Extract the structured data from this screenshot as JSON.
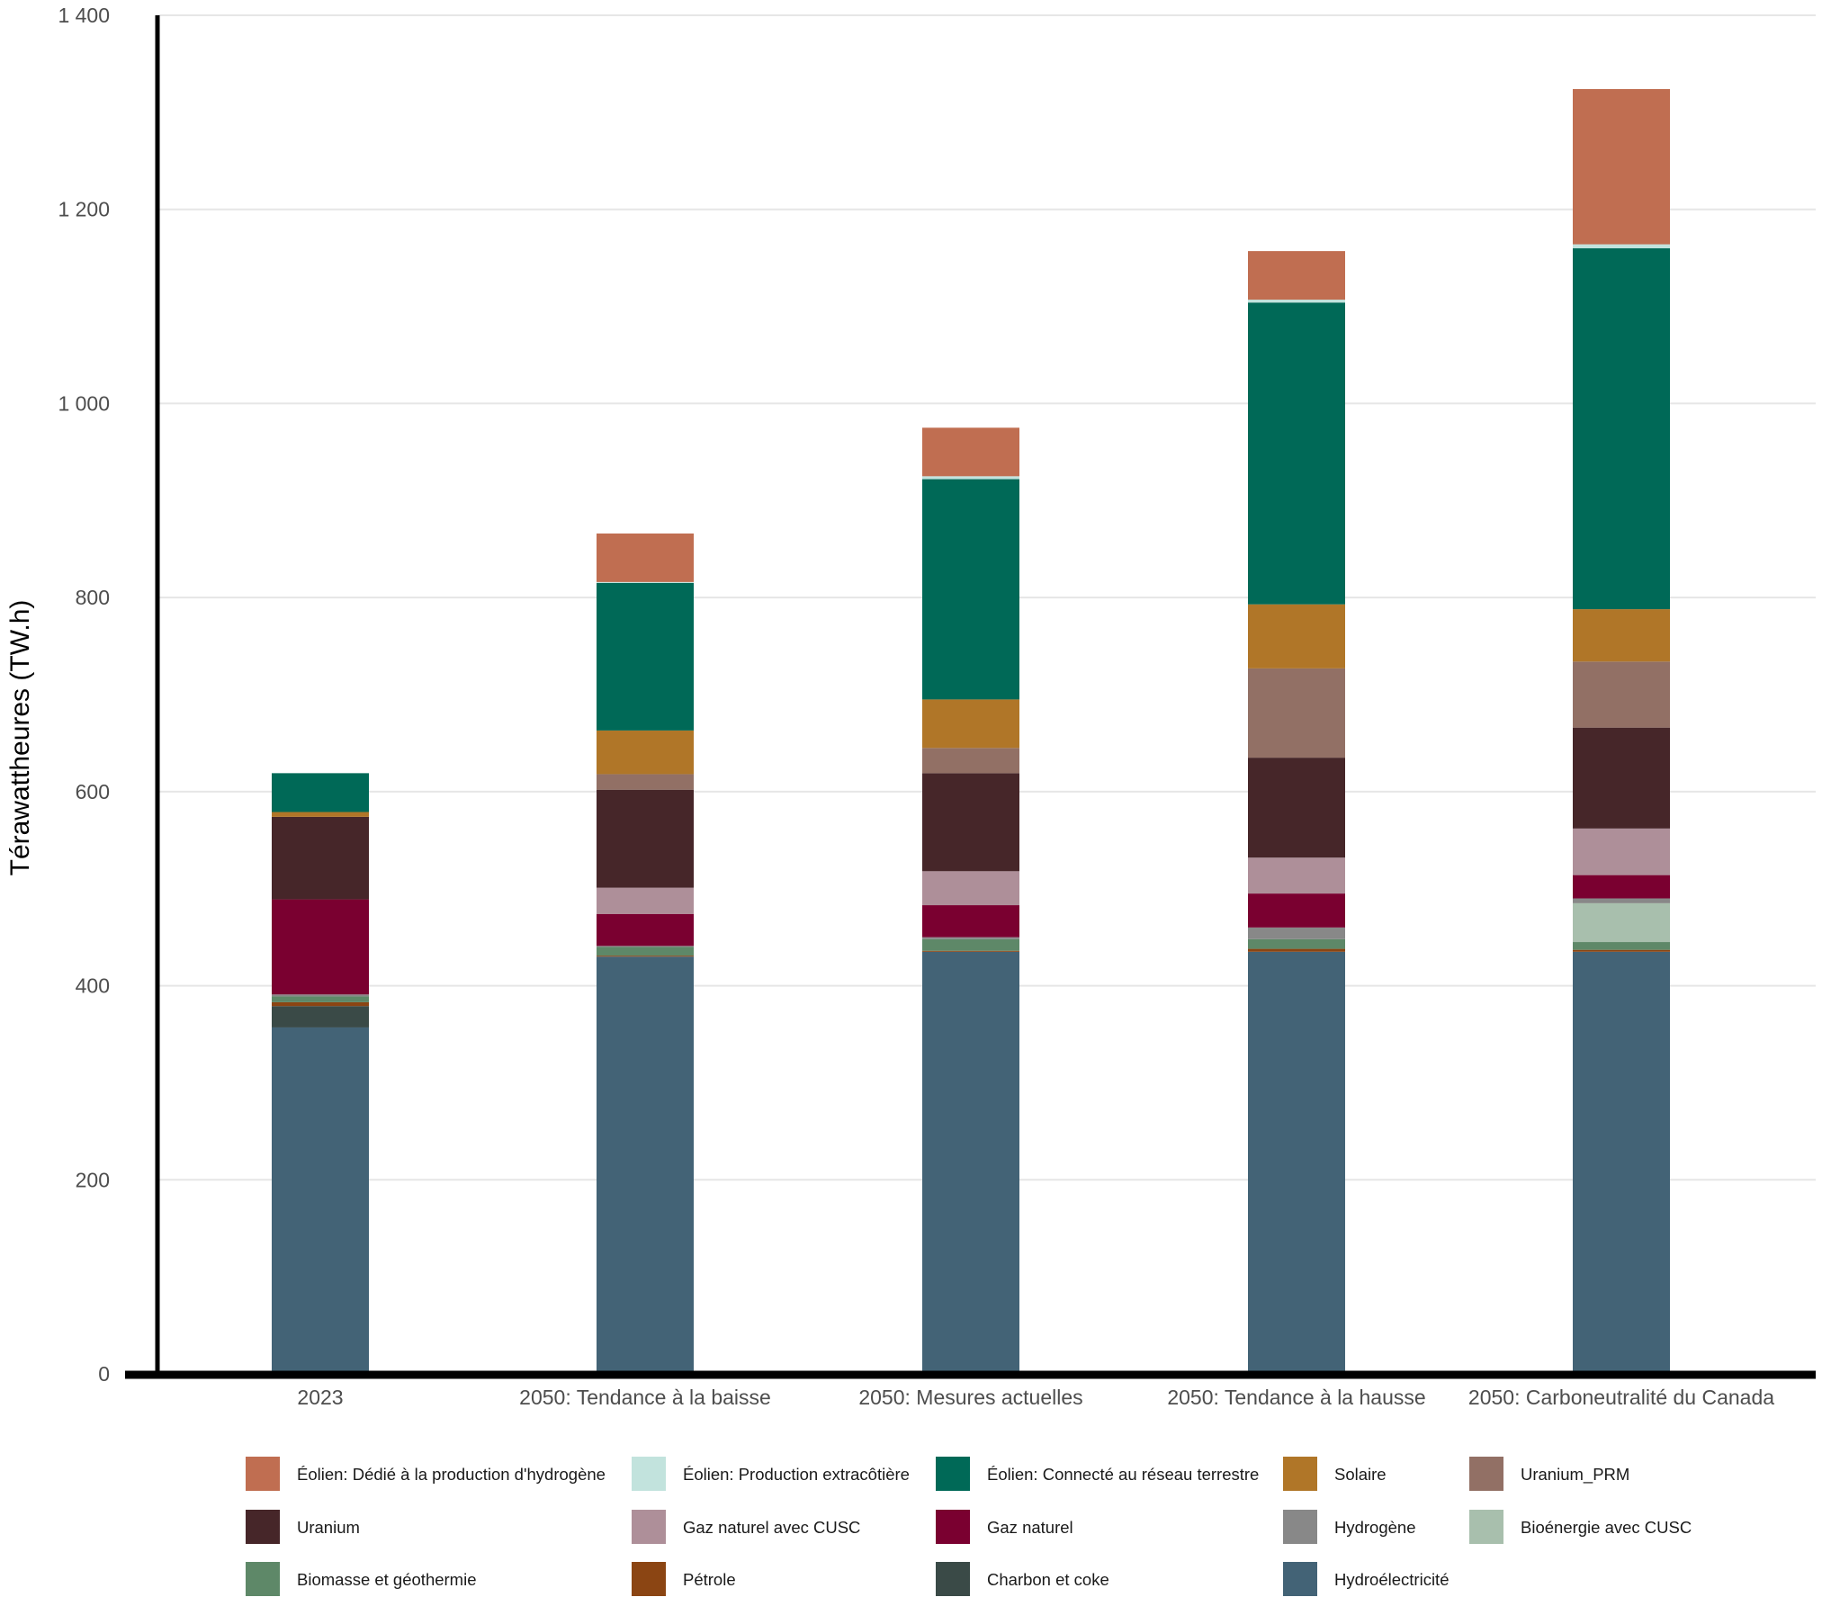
{
  "chart_data": {
    "type": "bar",
    "stacked": true,
    "title": "",
    "xlabel": "",
    "ylabel": "Térawattheures (TW.h)",
    "ylim": [
      0,
      1400
    ],
    "yticks": [
      0,
      200,
      400,
      600,
      800,
      1000,
      1200,
      1400
    ],
    "ytick_labels": [
      "0",
      "200",
      "400",
      "600",
      "800",
      "1 000",
      "1 200",
      "1 400"
    ],
    "grid": "horizontal",
    "legend_position": "bottom",
    "categories": [
      "2023",
      "2050: Tendance à la baisse",
      "2050: Mesures actuelles",
      "2050: Tendance à la hausse",
      "2050: Carboneutralité du Canada"
    ],
    "series": [
      {
        "name": "Hydroélectricité",
        "color": "#436376",
        "values": [
          357,
          430,
          435,
          435,
          435
        ]
      },
      {
        "name": "Charbon et coke",
        "color": "#3a4a47",
        "values": [
          22,
          0,
          0,
          0,
          0
        ]
      },
      {
        "name": "Pétrole",
        "color": "#8b4513",
        "values": [
          4,
          1,
          1,
          3,
          2
        ]
      },
      {
        "name": "Biomasse et géothermie",
        "color": "#5e8868",
        "values": [
          6,
          9,
          12,
          10,
          8
        ]
      },
      {
        "name": "Bioénergie avec CUSC",
        "color": "#a8bfad",
        "values": [
          0,
          0,
          0,
          0,
          40
        ]
      },
      {
        "name": "Hydrogène",
        "color": "#888888",
        "values": [
          2,
          1,
          2,
          12,
          5
        ]
      },
      {
        "name": "Gaz naturel",
        "color": "#7a0030",
        "values": [
          98,
          33,
          33,
          35,
          24
        ]
      },
      {
        "name": "Gaz naturel avec CUSC",
        "color": "#ae8f99",
        "values": [
          0,
          27,
          35,
          37,
          48
        ]
      },
      {
        "name": "Uranium",
        "color": "#462629",
        "values": [
          85,
          101,
          101,
          103,
          104
        ]
      },
      {
        "name": "Uranium_PRM",
        "color": "#927065",
        "values": [
          0,
          16,
          26,
          92,
          68
        ]
      },
      {
        "name": "Solaire",
        "color": "#b07628",
        "values": [
          5,
          45,
          50,
          66,
          54
        ]
      },
      {
        "name": "Éolien: Connecté au réseau terrestre",
        "color": "#006957",
        "values": [
          40,
          152,
          227,
          311,
          372
        ]
      },
      {
        "name": "Éolien: Production extracôtière",
        "color": "#c2e3dd",
        "values": [
          0,
          1,
          3,
          3,
          4
        ]
      },
      {
        "name": "Éolien: Dédié à la production d'hydrogène",
        "color": "#c06e51",
        "values": [
          0,
          50,
          50,
          50,
          160
        ]
      }
    ],
    "legend_order": [
      "Éolien: Dédié à la production d'hydrogène",
      "Éolien: Production extracôtière",
      "Éolien: Connecté au réseau terrestre",
      "Solaire",
      "Uranium_PRM",
      "Uranium",
      "Gaz naturel avec CUSC",
      "Gaz naturel",
      "Hydrogène",
      "Bioénergie avec CUSC",
      "Biomasse et géothermie",
      "Pétrole",
      "Charbon et coke",
      "Hydroélectricité"
    ]
  }
}
